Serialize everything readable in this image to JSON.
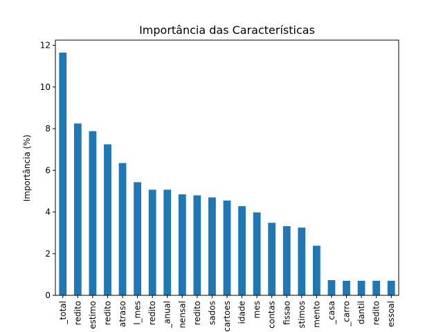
{
  "chart_data": {
    "type": "bar",
    "title": "Importância das Características",
    "xlabel": "",
    "ylabel": "Importância (%)",
    "ylim": [
      0,
      12.25
    ],
    "yticks": [
      0,
      2,
      4,
      6,
      8,
      10,
      12
    ],
    "grid": false,
    "legend": "none",
    "bar_color": "#1f77b4",
    "categories": [
      "_total",
      "redito",
      "estimo",
      "redito",
      "atraso",
      "l_mes",
      "redito",
      "_anual",
      "nensal",
      "redito",
      "sados",
      "cartoes",
      "idade",
      "mes",
      "contas",
      "fissao",
      "stimos",
      "mento",
      "_casa",
      "_carro",
      "dantil",
      "redito",
      "essoal"
    ],
    "values": [
      11.65,
      8.25,
      7.88,
      7.25,
      6.35,
      5.43,
      5.07,
      5.07,
      4.85,
      4.8,
      4.7,
      4.55,
      4.28,
      3.98,
      3.48,
      3.32,
      3.25,
      2.38,
      0.73,
      0.7,
      0.7,
      0.7,
      0.7
    ]
  }
}
